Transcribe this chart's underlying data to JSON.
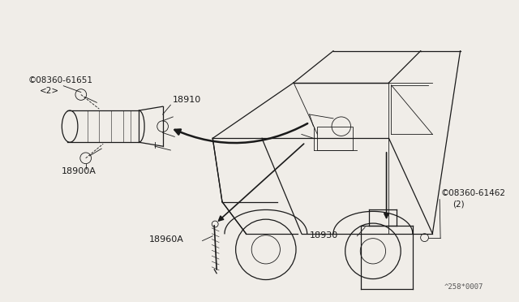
{
  "bg_color": "#f0ede8",
  "line_color": "#1a1a1a",
  "text_color": "#1a1a1a",
  "fig_width": 6.4,
  "fig_height": 3.72,
  "watermark": "^258*0007"
}
